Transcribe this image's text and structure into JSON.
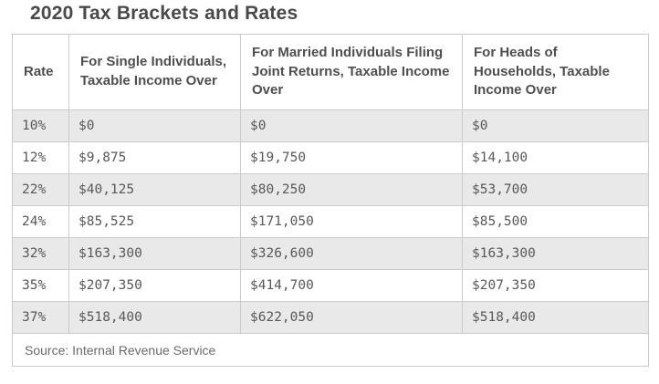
{
  "title": "2020 Tax Brackets and Rates",
  "table": {
    "headers": [
      "Rate",
      "For Single Individuals, Taxable Income Over",
      "For Married Individuals Filing Joint Returns, Taxable Income Over",
      "For Heads of Households, Taxable Income Over"
    ],
    "rows": [
      [
        "10%",
        "$0",
        "$0",
        "$0"
      ],
      [
        "12%",
        "$9,875",
        "$19,750",
        "$14,100"
      ],
      [
        "22%",
        "$40,125",
        "$80,250",
        "$53,700"
      ],
      [
        "24%",
        "$85,525",
        "$171,050",
        "$85,500"
      ],
      [
        "32%",
        "$163,300",
        "$326,600",
        "$163,300"
      ],
      [
        "35%",
        "$207,350",
        "$414,700",
        "$207,350"
      ],
      [
        "37%",
        "$518,400",
        "$622,050",
        "$518,400"
      ]
    ],
    "source_note": "Source: Internal Revenue Service"
  },
  "colors": {
    "title_text": "#48494b",
    "header_text": "#4e4f51",
    "cell_text": "#58585a",
    "footer_text": "#6a6a6c",
    "alt_row_bg": "#e9e9e9",
    "border": "#cbcbcb"
  },
  "chart_data": {
    "type": "table",
    "title": "2020 Tax Brackets and Rates",
    "columns": [
      "Rate",
      "For Single Individuals, Taxable Income Over",
      "For Married Individuals Filing Joint Returns, Taxable Income Over",
      "For Heads of Households, Taxable Income Over"
    ],
    "rates": [
      "10%",
      "12%",
      "22%",
      "24%",
      "32%",
      "35%",
      "37%"
    ],
    "series": [
      {
        "name": "For Single Individuals, Taxable Income Over",
        "values": [
          0,
          9875,
          40125,
          85525,
          163300,
          207350,
          518400
        ]
      },
      {
        "name": "For Married Individuals Filing Joint Returns, Taxable Income Over",
        "values": [
          0,
          19750,
          80250,
          171050,
          326600,
          414700,
          622050
        ]
      },
      {
        "name": "For Heads of Households, Taxable Income Over",
        "values": [
          0,
          14100,
          53700,
          85500,
          163300,
          207350,
          518400
        ]
      }
    ],
    "source": "Source: Internal Revenue Service"
  }
}
